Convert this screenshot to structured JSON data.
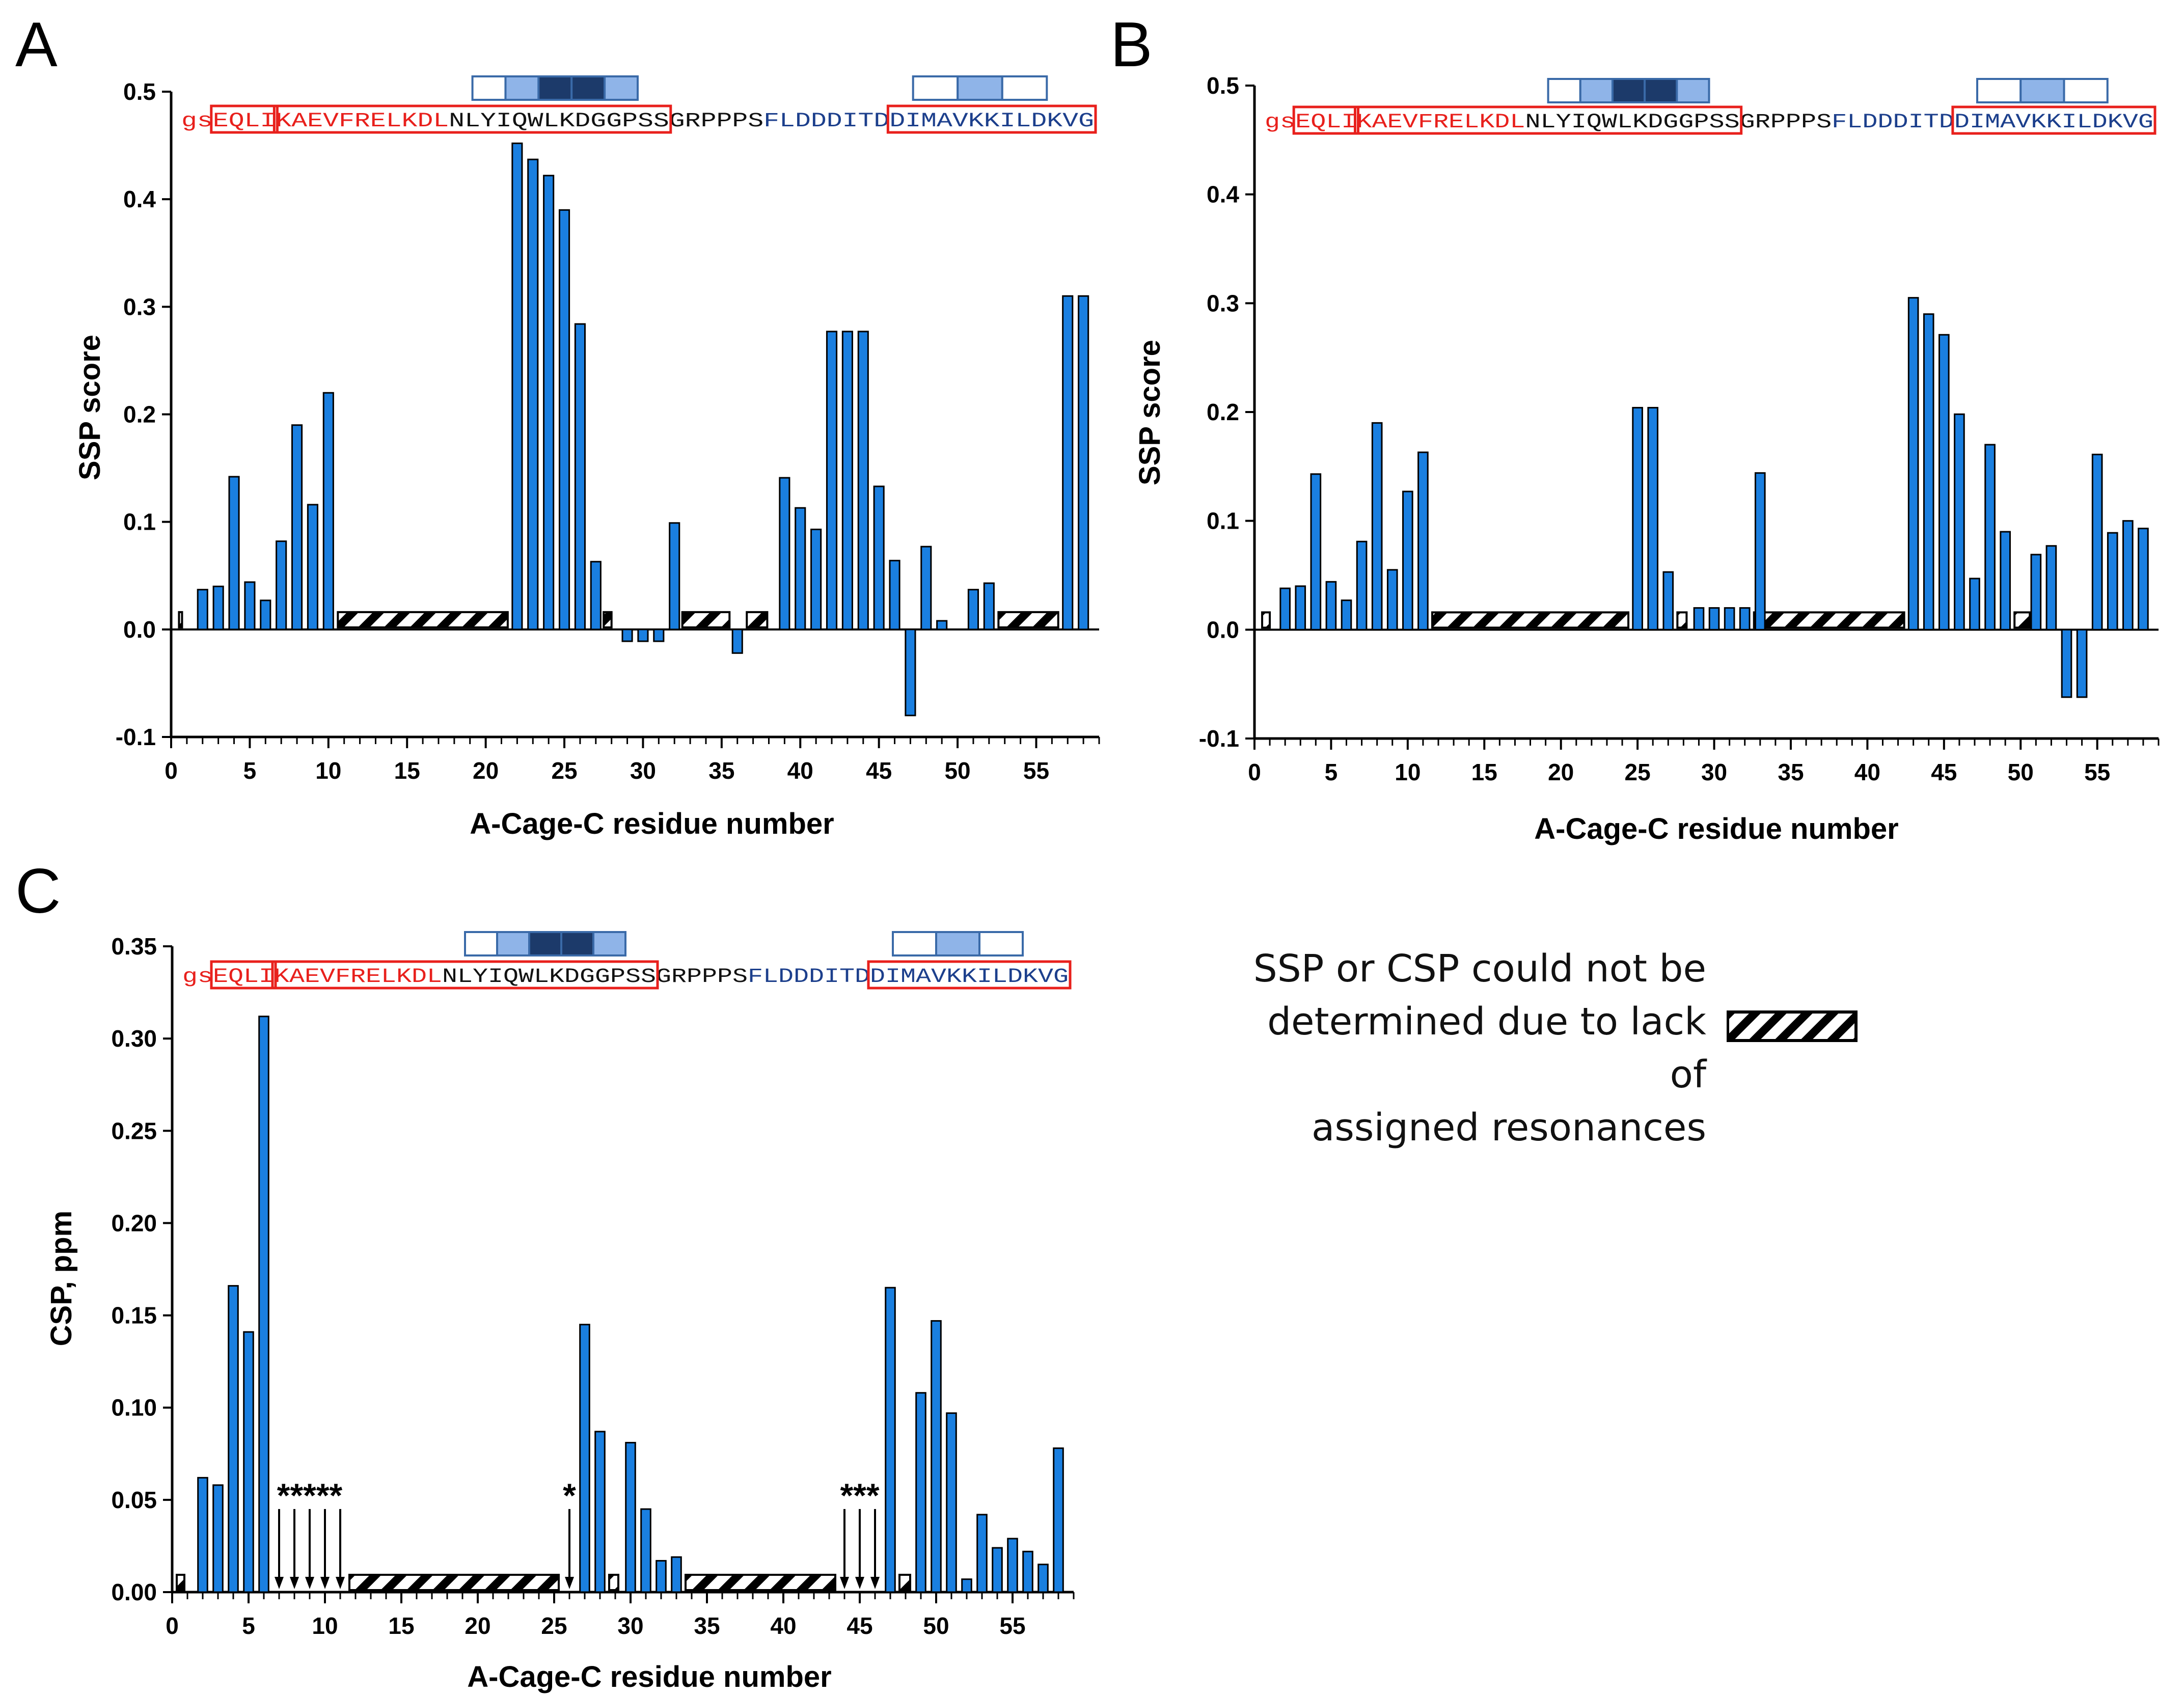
{
  "legend": {
    "line1": "SSP or CSP could not be",
    "line2": "determined due to lack of",
    "line3": "assigned resonances"
  },
  "sequence": {
    "red_part": "gsEQLIKAEVFRELKDL",
    "black_part": "NLYIQWLKDGGPSSGRPPPS",
    "blue_part": "FLDDDITDDIMAVKKILDKV",
    "end": "G"
  },
  "colors": {
    "bar": "#1a7fe0",
    "bar_edge": "#000000",
    "seq_red": "#e8201c",
    "seq_blue": "#1c3f8c",
    "box_outline": "#e8201c",
    "ss_outline": "#3a6aa8",
    "ss_light": "#8fb4e8",
    "ss_dark": "#1c3a6a"
  },
  "chart_data": [
    {
      "panel": "A",
      "type": "bar",
      "xlabel": "A-Cage-C residue number",
      "ylabel": "SSP score",
      "ylim": [
        -0.1,
        0.5
      ],
      "xlim": [
        0,
        59
      ],
      "yticks": [
        -0.1,
        0.0,
        0.1,
        0.2,
        0.3,
        0.4,
        0.5
      ],
      "ytick_labels": [
        "-0.1",
        "0.0",
        "0.1",
        "0.2",
        "0.3",
        "0.4",
        "0.5"
      ],
      "xticks": [
        0,
        5,
        10,
        15,
        20,
        25,
        30,
        35,
        40,
        45,
        50,
        55
      ],
      "xtick_labels": [
        "0",
        "5",
        "10",
        "15",
        "20",
        "25",
        "30",
        "35",
        "40",
        "45",
        "50",
        "55"
      ],
      "residues": [
        2,
        3,
        4,
        5,
        6,
        7,
        8,
        9,
        10,
        22,
        23,
        24,
        25,
        26,
        27,
        29,
        30,
        31,
        32,
        36,
        39,
        40,
        41,
        42,
        43,
        44,
        45,
        46,
        47,
        48,
        49,
        51,
        52,
        57,
        58
      ],
      "values": [
        0.037,
        0.04,
        0.142,
        0.044,
        0.027,
        0.082,
        0.19,
        0.116,
        0.22,
        0.452,
        0.437,
        0.422,
        0.39,
        0.284,
        0.063,
        -0.011,
        -0.011,
        -0.011,
        0.099,
        -0.022,
        0.141,
        0.113,
        0.093,
        0.277,
        0.277,
        0.277,
        0.133,
        0.064,
        -0.08,
        0.077,
        0.008,
        0.037,
        0.043,
        0.31,
        0.31
      ],
      "unassigned": [
        [
          0.5,
          0.6
        ],
        [
          10.6,
          21.4
        ],
        [
          27.5,
          28.0
        ],
        [
          32.5,
          35.5
        ],
        [
          36.6,
          37.9
        ],
        [
          52.6,
          56.4
        ]
      ],
      "ss_top": [
        "white",
        "light",
        "dark",
        "dark",
        "light"
      ],
      "ss_bottom": [
        "white",
        "light",
        "white"
      ]
    },
    {
      "panel": "B",
      "type": "bar",
      "xlabel": "A-Cage-C residue number",
      "ylabel": "SSP score",
      "ylim": [
        -0.1,
        0.5
      ],
      "xlim": [
        0,
        59
      ],
      "yticks": [
        -0.1,
        0.0,
        0.1,
        0.2,
        0.3,
        0.4,
        0.5
      ],
      "ytick_labels": [
        "-0.1",
        "0.0",
        "0.1",
        "0.2",
        "0.3",
        "0.4",
        "0.5"
      ],
      "xticks": [
        0,
        5,
        10,
        15,
        20,
        25,
        30,
        35,
        40,
        45,
        50,
        55
      ],
      "xtick_labels": [
        "0",
        "5",
        "10",
        "15",
        "20",
        "25",
        "30",
        "35",
        "40",
        "45",
        "50",
        "55"
      ],
      "residues": [
        2,
        3,
        4,
        5,
        6,
        7,
        8,
        9,
        10,
        11,
        25,
        26,
        27,
        29,
        30,
        31,
        32,
        33,
        43,
        44,
        45,
        46,
        47,
        48,
        49,
        51,
        52,
        53,
        54,
        55,
        56,
        57,
        58
      ],
      "values": [
        0.038,
        0.04,
        0.143,
        0.044,
        0.027,
        0.081,
        0.19,
        0.055,
        0.127,
        0.163,
        0.204,
        0.204,
        0.053,
        0.02,
        0.02,
        0.02,
        0.02,
        0.144,
        0.305,
        0.29,
        0.271,
        0.198,
        0.047,
        0.17,
        0.09,
        0.069,
        0.077,
        -0.062,
        -0.062,
        0.161,
        0.089,
        0.1,
        0.093
      ],
      "unassigned": [
        [
          0.5,
          1.0
        ],
        [
          11.6,
          24.4
        ],
        [
          27.6,
          28.2
        ],
        [
          32.6,
          42.4
        ],
        [
          49.6,
          50.6
        ]
      ],
      "ss_top": [
        "white",
        "light",
        "dark",
        "dark",
        "light"
      ],
      "ss_bottom": [
        "white",
        "light",
        "white"
      ]
    },
    {
      "panel": "C",
      "type": "bar",
      "xlabel": "A-Cage-C residue number",
      "ylabel": "CSP, ppm",
      "ylim": [
        0,
        0.35
      ],
      "xlim": [
        0,
        59
      ],
      "yticks": [
        0,
        0.05,
        0.1,
        0.15,
        0.2,
        0.25,
        0.3,
        0.35
      ],
      "ytick_labels": [
        "0.00",
        "0.05",
        "0.10",
        "0.15",
        "0.20",
        "0.25",
        "0.30",
        "0.35"
      ],
      "xticks": [
        0,
        5,
        10,
        15,
        20,
        25,
        30,
        35,
        40,
        45,
        50,
        55
      ],
      "xtick_labels": [
        "0",
        "5",
        "10",
        "15",
        "20",
        "25",
        "30",
        "35",
        "40",
        "45",
        "50",
        "55"
      ],
      "residues": [
        2,
        3,
        4,
        5,
        6,
        27,
        28,
        30,
        31,
        32,
        33,
        47,
        49,
        50,
        51,
        52,
        53,
        54,
        55,
        56,
        57,
        58
      ],
      "values": [
        0.062,
        0.058,
        0.166,
        0.141,
        0.312,
        0.145,
        0.087,
        0.081,
        0.045,
        0.017,
        0.019,
        0.165,
        0.108,
        0.147,
        0.097,
        0.007,
        0.042,
        0.024,
        0.029,
        0.022,
        0.015,
        0.078
      ],
      "unassigned": [
        [
          0.3,
          0.8
        ],
        [
          11.6,
          25.3
        ],
        [
          28.6,
          29.2
        ],
        [
          33.6,
          43.4
        ],
        [
          47.6,
          48.3
        ]
      ],
      "asterisk_residues": [
        7,
        8,
        9,
        10,
        11,
        26,
        44,
        45,
        46
      ],
      "asterisk_groups": [
        {
          "label": "*****",
          "from": 7,
          "to": 11
        },
        {
          "label": "*",
          "from": 26,
          "to": 26
        },
        {
          "label": "***",
          "from": 44,
          "to": 46
        }
      ],
      "ss_top": [
        "white",
        "light",
        "dark",
        "dark",
        "light"
      ],
      "ss_bottom": [
        "white",
        "light",
        "white"
      ]
    }
  ],
  "panel_labels": [
    "A",
    "B",
    "C"
  ]
}
